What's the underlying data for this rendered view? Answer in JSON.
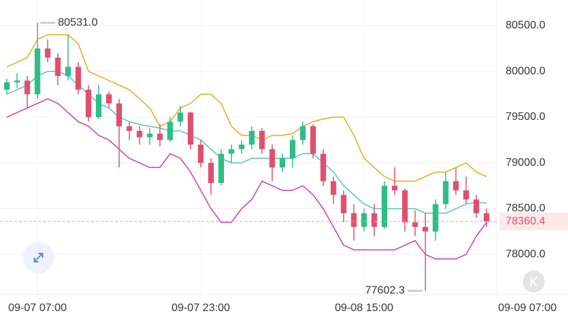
{
  "chart_data": {
    "type": "candlestick",
    "open": [
      79800,
      79880,
      79900,
      79750,
      80250,
      80150,
      79950,
      80050,
      79800,
      79500,
      79750,
      79650,
      79400,
      79350,
      79280,
      79320,
      79250,
      79450,
      79550,
      79200,
      79000,
      78780,
      79100,
      79150,
      79200,
      79350,
      79150,
      78950,
      79050,
      79250,
      79400,
      79100,
      78800,
      78650,
      78450,
      78300,
      78450,
      78300,
      78750,
      78700,
      78350,
      78300,
      78250,
      78550,
      78800,
      78700,
      78600,
      78450
    ],
    "high": [
      79920,
      79980,
      79950,
      80531,
      80350,
      80200,
      80400,
      80100,
      79850,
      79850,
      79780,
      79700,
      79450,
      79400,
      79380,
      79420,
      79500,
      79620,
      79560,
      79250,
      79050,
      79150,
      79200,
      79250,
      79400,
      79380,
      79200,
      79100,
      79300,
      79450,
      79420,
      79150,
      78850,
      78700,
      78550,
      78500,
      78550,
      78800,
      78950,
      78720,
      78480,
      78450,
      78600,
      78900,
      78950,
      78850,
      78650,
      78500
    ],
    "low": [
      79750,
      79820,
      79600,
      79700,
      80100,
      79850,
      79900,
      79750,
      79450,
      79480,
      79600,
      78950,
      79250,
      79200,
      79200,
      79180,
      79230,
      79400,
      79150,
      78950,
      78650,
      78750,
      79000,
      79100,
      79150,
      79100,
      78800,
      78900,
      78950,
      79200,
      79050,
      78750,
      78550,
      78350,
      78150,
      78250,
      78200,
      78280,
      78650,
      78250,
      78200,
      77602.3,
      78150,
      78500,
      78650,
      78550,
      78400,
      78300
    ],
    "close": [
      79880,
      79900,
      79750,
      80250,
      80150,
      79950,
      80050,
      79800,
      79500,
      79750,
      79650,
      79400,
      79350,
      79280,
      79320,
      79250,
      79450,
      79550,
      79200,
      79000,
      78780,
      79100,
      79150,
      79200,
      79350,
      79150,
      78950,
      79050,
      79250,
      79400,
      79100,
      78800,
      78650,
      78450,
      78300,
      78450,
      78300,
      78750,
      78700,
      78350,
      78300,
      78250,
      78550,
      78800,
      78700,
      78600,
      78450,
      78360.4
    ],
    "up_color": "#2ebd85",
    "down_color": "#e0506e",
    "bands": [
      {
        "color": "#eaa81c",
        "values": [
          80050,
          80100,
          80150,
          80350,
          80400,
          80400,
          80400,
          80300,
          80000,
          79950,
          79900,
          79850,
          79800,
          79700,
          79600,
          79400,
          79450,
          79600,
          79650,
          79750,
          79750,
          79650,
          79400,
          79300,
          79300,
          79250,
          79300,
          79300,
          79320,
          79400,
          79450,
          79480,
          79500,
          79500,
          79300,
          79050,
          78950,
          78850,
          78800,
          78800,
          78800,
          78850,
          78900,
          78900,
          78950,
          79000,
          78900,
          78850
        ]
      },
      {
        "color": "#4fc9b0",
        "values": [
          79750,
          79800,
          79850,
          79950,
          80000,
          80000,
          79950,
          79850,
          79750,
          79650,
          79600,
          79500,
          79450,
          79420,
          79400,
          79380,
          79350,
          79350,
          79300,
          79250,
          79150,
          79050,
          79000,
          79000,
          79050,
          79050,
          79050,
          79050,
          79050,
          79100,
          79100,
          79000,
          78900,
          78750,
          78650,
          78550,
          78500,
          78500,
          78500,
          78500,
          78500,
          78450,
          78450,
          78450,
          78500,
          78550,
          78570,
          78560
        ]
      },
      {
        "color": "#c83fae",
        "values": [
          79500,
          79550,
          79600,
          79650,
          79700,
          79650,
          79550,
          79450,
          79400,
          79300,
          79250,
          79150,
          79050,
          79000,
          78950,
          78950,
          79100,
          79050,
          78900,
          78700,
          78500,
          78350,
          78350,
          78500,
          78600,
          78800,
          78750,
          78700,
          78700,
          78750,
          78650,
          78500,
          78300,
          78100,
          78050,
          78050,
          78050,
          78050,
          78050,
          78100,
          78150,
          78000,
          77950,
          77950,
          77950,
          78000,
          78200,
          78350
        ]
      }
    ],
    "ylim": [
      77560,
      80780
    ],
    "yticks": [
      {
        "value": 80500,
        "label": "80500.0"
      },
      {
        "value": 80000,
        "label": "80000.0"
      },
      {
        "value": 79500,
        "label": "79500.0"
      },
      {
        "value": 79000,
        "label": "79000.0"
      },
      {
        "value": 78500,
        "label": "78500.0"
      },
      {
        "value": 78000,
        "label": "78000.0"
      }
    ],
    "xlim": [
      -0.67,
      48
    ],
    "xticks": [
      {
        "value": 3,
        "label": "09-07 07:00"
      },
      {
        "value": 19,
        "label": "09-07 23:00"
      },
      {
        "value": 35,
        "label": "09-08 15:00"
      },
      {
        "value": 51,
        "label": "09-09 07:00"
      }
    ],
    "max_marker": {
      "value": 80531,
      "label": "80531.0"
    },
    "min_marker": {
      "value": 77602.3,
      "label": "77602.3"
    },
    "last_price": {
      "value": 78360.4,
      "label": "78360.4"
    },
    "grid": true
  }
}
